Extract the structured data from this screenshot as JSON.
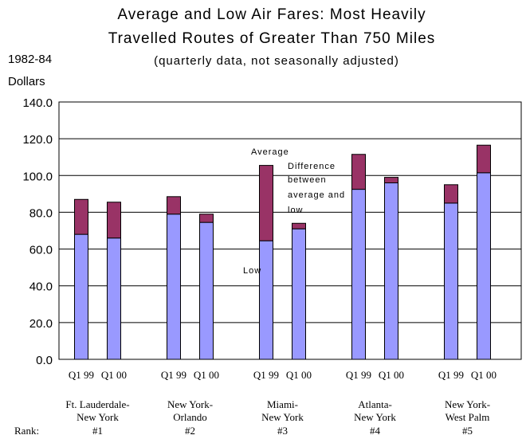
{
  "chart_data": {
    "type": "bar",
    "stacked": true,
    "title_line1": "Average and Low Air Fares: Most Heavily",
    "title_line2": "Travelled Routes of Greater Than 750 Miles",
    "subtitle": "(quarterly data, not seasonally adjusted)",
    "ylabel_line1": "1982-84",
    "ylabel_line2": "Dollars",
    "ylim": [
      0,
      140
    ],
    "yticks": [
      "0.0",
      "20.0",
      "40.0",
      "60.0",
      "80.0",
      "100.0",
      "120.0",
      "140.0"
    ],
    "grid": true,
    "rank_label": "Rank:",
    "groups": [
      {
        "route": [
          "Ft. Lauderdale-",
          "New York"
        ],
        "rank": "#1",
        "bars": [
          {
            "label": "Q1 99",
            "low": 68,
            "average": 87
          },
          {
            "label": "Q1 00",
            "low": 66,
            "average": 85.5
          }
        ]
      },
      {
        "route": [
          "New York-",
          "Orlando"
        ],
        "rank": "#2",
        "bars": [
          {
            "label": "Q1 99",
            "low": 79,
            "average": 88.5
          },
          {
            "label": "Q1 00",
            "low": 74.5,
            "average": 79
          }
        ]
      },
      {
        "route": [
          "Miami-",
          "New York"
        ],
        "rank": "#3",
        "bars": [
          {
            "label": "Q1 99",
            "low": 64.5,
            "average": 105.5
          },
          {
            "label": "Q1 00",
            "low": 71,
            "average": 74
          }
        ]
      },
      {
        "route": [
          "Atlanta-",
          "New York"
        ],
        "rank": "#4",
        "bars": [
          {
            "label": "Q1 99",
            "low": 92.5,
            "average": 111.5
          },
          {
            "label": "Q1 00",
            "low": 96,
            "average": 99
          }
        ]
      },
      {
        "route": [
          "New York-",
          "West Palm"
        ],
        "rank": "#5",
        "bars": [
          {
            "label": "Q1 99",
            "low": 85,
            "average": 95
          },
          {
            "label": "Q1 00",
            "low": 101.5,
            "average": 116.5
          }
        ]
      }
    ],
    "series": [
      {
        "name": "Low",
        "color": "#9999ff"
      },
      {
        "name": "Difference between average and low",
        "color": "#993366"
      }
    ],
    "annotations": {
      "average": "Average",
      "difference": [
        "Difference",
        "between",
        "average and",
        "low"
      ],
      "low": "Low"
    }
  }
}
